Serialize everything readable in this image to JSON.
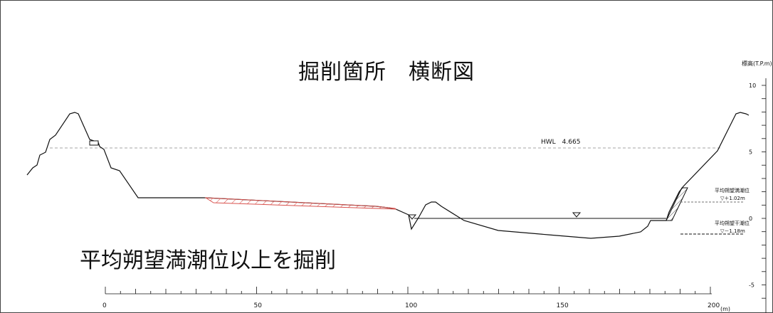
{
  "title": "掘削箇所　横断図",
  "caption": "平均朔望満潮位以上を掘削",
  "hwl_label": "HWL　4.665",
  "y_axis": {
    "title": "標高(T.P.m)",
    "ticks": [
      {
        "value": 10,
        "label": "10"
      },
      {
        "value": 5,
        "label": "5"
      },
      {
        "value": 0,
        "label": "0"
      },
      {
        "value": -5,
        "label": "-5"
      }
    ]
  },
  "x_axis": {
    "unit": "(m)",
    "ticks": [
      {
        "value": 0,
        "label": "0"
      },
      {
        "value": 50,
        "label": "50"
      },
      {
        "value": 100,
        "label": "100"
      },
      {
        "value": 150,
        "label": "150"
      },
      {
        "value": 200,
        "label": "200"
      }
    ]
  },
  "tide_high": {
    "name": "平均朔望満潮位",
    "value": "▽＋1.02m"
  },
  "tide_low": {
    "name": "平均朔望干潮位",
    "value": "▽－1.18m"
  },
  "colors": {
    "excavation": "#d9534f",
    "line": "#111111"
  }
}
